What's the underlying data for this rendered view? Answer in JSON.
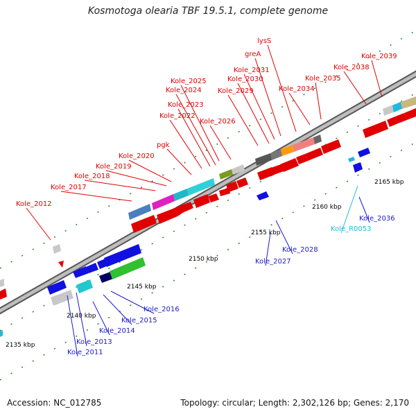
{
  "title": "Kosmotoga olearia TBF 19.5.1, complete genome",
  "footer": {
    "accession": "Accession: NC_012785",
    "summary": "Topology: circular; Length: 2,302,126 bp; Genes: 2,170"
  },
  "colors": {
    "forward_label": "#e00000",
    "reverse_label": "#1a1acc",
    "rna_label": "#22bbdd",
    "backbone": "#9a9a9a"
  },
  "ticks": [
    "2135 kbp",
    "2140 kbp",
    "2145 kbp",
    "2150 kbp",
    "2155 kbp",
    "2160 kbp",
    "2165 kbp"
  ],
  "forward_labels": [
    "Kole_2012",
    "Kole_2017",
    "Kole_2018",
    "Kole_2019",
    "Kole_2020",
    "pgk",
    "Kole_2022",
    "Kole_2023",
    "Kole_2024",
    "Kole_2025",
    "Kole_2026",
    "Kole_2029",
    "Kole_2030",
    "Kole_2031",
    "greA",
    "lysS",
    "Kole_2034",
    "Kole_2035",
    "Kole_2038",
    "Kole_2039"
  ],
  "reverse_labels": [
    "Kole_2011",
    "Kole_2013",
    "Kole_2014",
    "Kole_2015",
    "Kole_2016",
    "Kole_2027",
    "Kole_2028",
    "Kole_2036",
    "Kole_R0053"
  ]
}
